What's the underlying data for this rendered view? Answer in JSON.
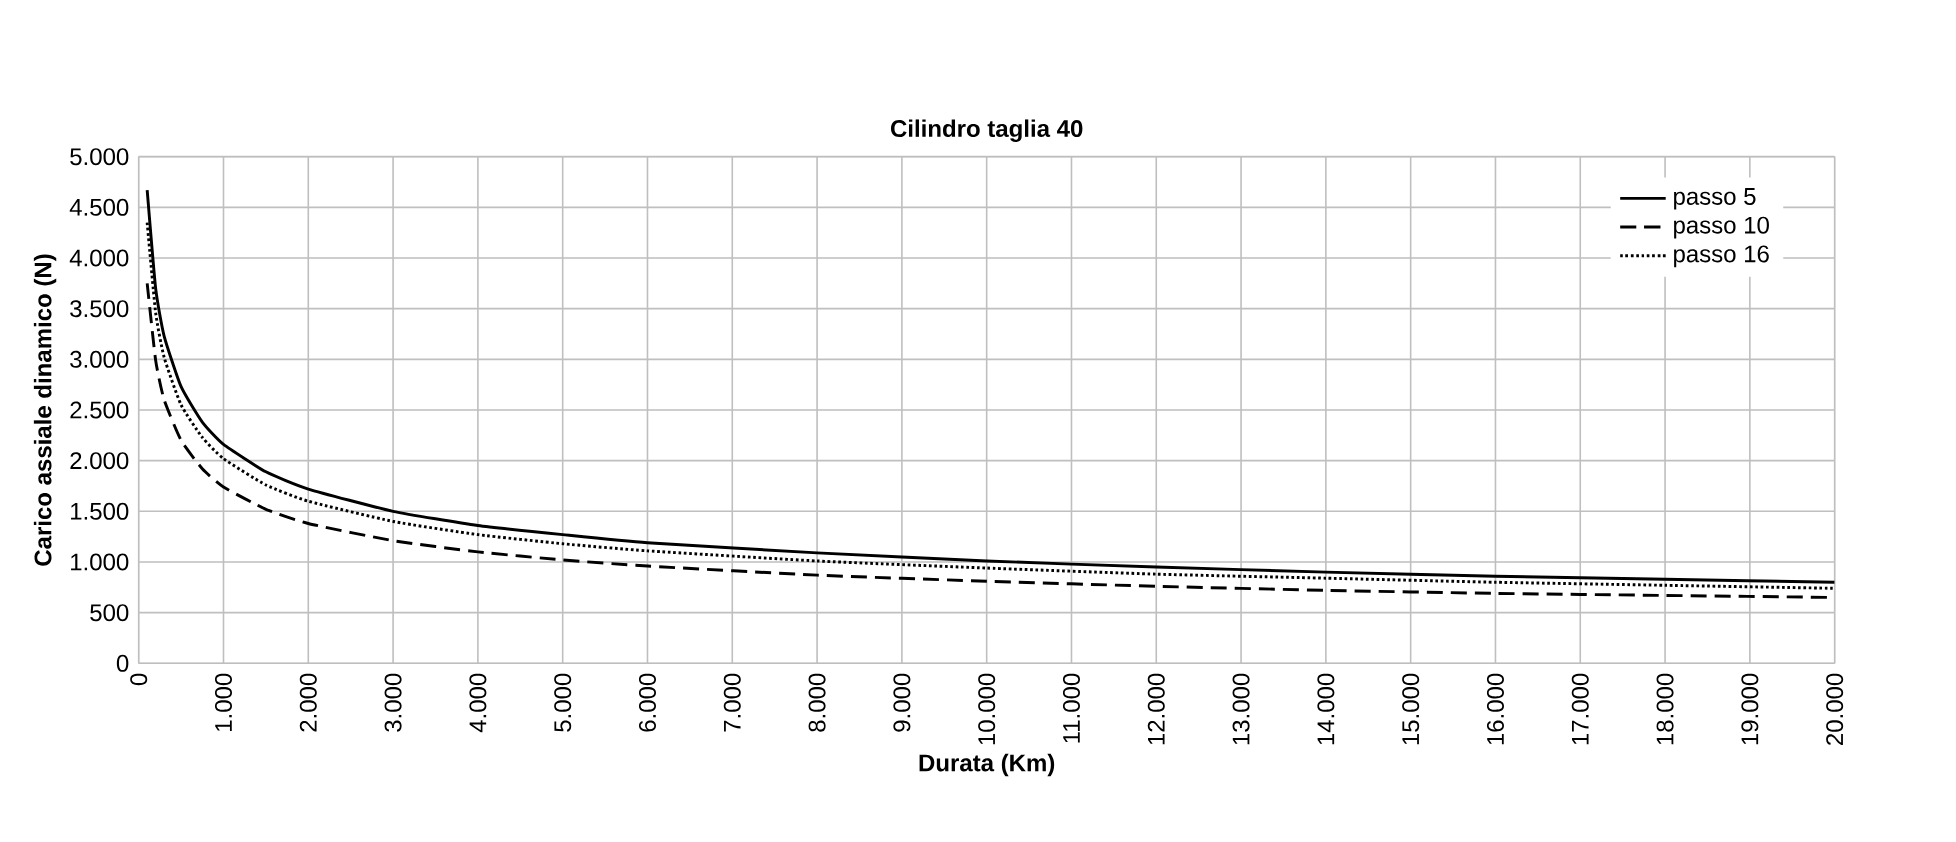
{
  "chart_data": {
    "type": "line",
    "title": "Cilindro taglia 40",
    "xlabel": "Durata (Km)",
    "ylabel": "Carico assiale dinamico (N)",
    "x": [
      100,
      200,
      300,
      500,
      750,
      1000,
      1500,
      2000,
      3000,
      4000,
      5000,
      6000,
      8000,
      10000,
      12000,
      14000,
      16000,
      18000,
      20000
    ],
    "series": [
      {
        "name": "passo 5",
        "color": "#000000",
        "line_style": "solid",
        "values": [
          4670,
          3700,
          3230,
          2730,
          2380,
          2160,
          1890,
          1720,
          1500,
          1360,
          1270,
          1190,
          1090,
          1010,
          950,
          900,
          860,
          830,
          800
        ]
      },
      {
        "name": "passo 10",
        "color": "#000000",
        "line_style": "dashed",
        "values": [
          3750,
          2990,
          2600,
          2200,
          1920,
          1740,
          1520,
          1380,
          1210,
          1100,
          1020,
          960,
          870,
          810,
          760,
          720,
          690,
          670,
          650
        ]
      },
      {
        "name": "passo 16",
        "color": "#000000",
        "line_style": "dotted",
        "values": [
          4350,
          3460,
          3020,
          2550,
          2230,
          2020,
          1760,
          1600,
          1400,
          1270,
          1180,
          1110,
          1010,
          940,
          880,
          840,
          800,
          770,
          740
        ]
      }
    ],
    "xlim": [
      0,
      20000
    ],
    "ylim": [
      0,
      5000
    ],
    "xticks": [
      0,
      {
        "value": 1000,
        "label": "1.000"
      },
      {
        "value": 2000,
        "label": "2.000"
      },
      {
        "value": 3000,
        "label": "3.000"
      },
      {
        "value": 4000,
        "label": "4.000"
      },
      {
        "value": 5000,
        "label": "5.000"
      },
      {
        "value": 6000,
        "label": "6.000"
      },
      {
        "value": 7000,
        "label": "7.000"
      },
      {
        "value": 8000,
        "label": "8.000"
      },
      {
        "value": 9000,
        "label": "9.000"
      },
      {
        "value": 10000,
        "label": "10.000"
      },
      {
        "value": 11000,
        "label": "11.000"
      },
      {
        "value": 12000,
        "label": "12.000"
      },
      {
        "value": 13000,
        "label": "13.000"
      },
      {
        "value": 14000,
        "label": "14.000"
      },
      {
        "value": 15000,
        "label": "15.000"
      },
      {
        "value": 16000,
        "label": "16.000"
      },
      {
        "value": 17000,
        "label": "17.000"
      },
      {
        "value": 18000,
        "label": "18.000"
      },
      {
        "value": 19000,
        "label": "19.000"
      },
      {
        "value": 20000,
        "label": "20.000"
      }
    ],
    "yticks": [
      0,
      500,
      {
        "value": 1000,
        "label": "1.000"
      },
      {
        "value": 1500,
        "label": "1.500"
      },
      {
        "value": 2000,
        "label": "2.000"
      },
      {
        "value": 2500,
        "label": "2.500"
      },
      {
        "value": 3000,
        "label": "3.000"
      },
      {
        "value": 3500,
        "label": "3.500"
      },
      {
        "value": 4000,
        "label": "4.000"
      },
      {
        "value": 4500,
        "label": "4.500"
      },
      {
        "value": 5000,
        "label": "5.000"
      }
    ],
    "grid": true,
    "legend": "top right",
    "marker": "none"
  }
}
